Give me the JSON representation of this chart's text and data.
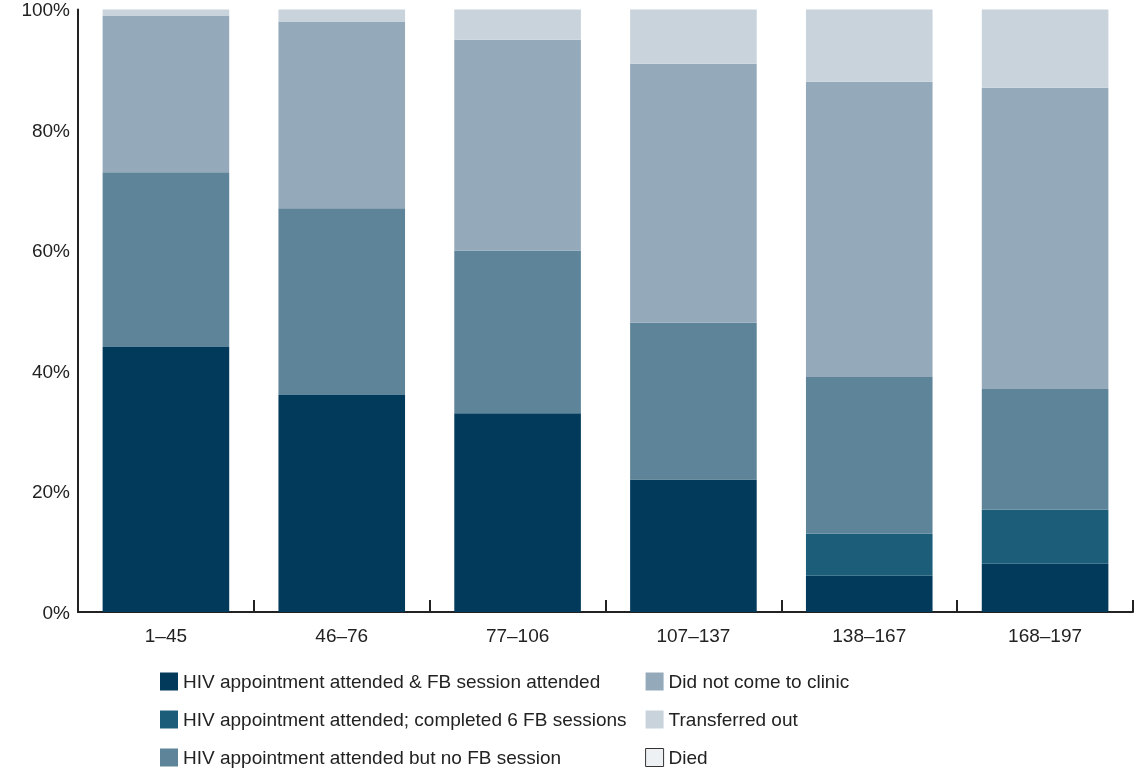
{
  "chart_data": {
    "type": "bar",
    "stacked": true,
    "categories": [
      "1–45",
      "46–76",
      "77–106",
      "107–137",
      "138–167",
      "168–197"
    ],
    "series": [
      {
        "name": "HIV appointment attended & FB session attended",
        "color": "#023a5c",
        "values": [
          44,
          36,
          33,
          22,
          6,
          8
        ]
      },
      {
        "name": "HIV appointment attended; completed 6 FB sessions",
        "color": "#1c5e7a",
        "values": [
          0,
          0,
          0,
          0,
          7,
          9
        ]
      },
      {
        "name": "HIV appointment attended but no FB session",
        "color": "#5d8499",
        "values": [
          29,
          31,
          27,
          26,
          26,
          20
        ]
      },
      {
        "name": "Did not come to clinic",
        "color": "#94a9b9",
        "values": [
          26,
          31,
          35,
          43,
          49,
          50
        ]
      },
      {
        "name": "Transferred out",
        "color": "#c9d3dc",
        "values": [
          1,
          2,
          5,
          9,
          12,
          13
        ]
      },
      {
        "name": "Died",
        "color": "#eef1f4",
        "values": [
          0,
          0,
          0,
          0,
          0,
          0
        ]
      }
    ],
    "ylim": [
      0,
      100
    ],
    "yticks": [
      {
        "value": 0,
        "label": "0%"
      },
      {
        "value": 20,
        "label": "20%"
      },
      {
        "value": 40,
        "label": "40%"
      },
      {
        "value": 60,
        "label": "60%"
      },
      {
        "value": 80,
        "label": "80%"
      },
      {
        "value": 100,
        "label": "100%"
      }
    ],
    "grid": false,
    "legend": "bottom"
  }
}
